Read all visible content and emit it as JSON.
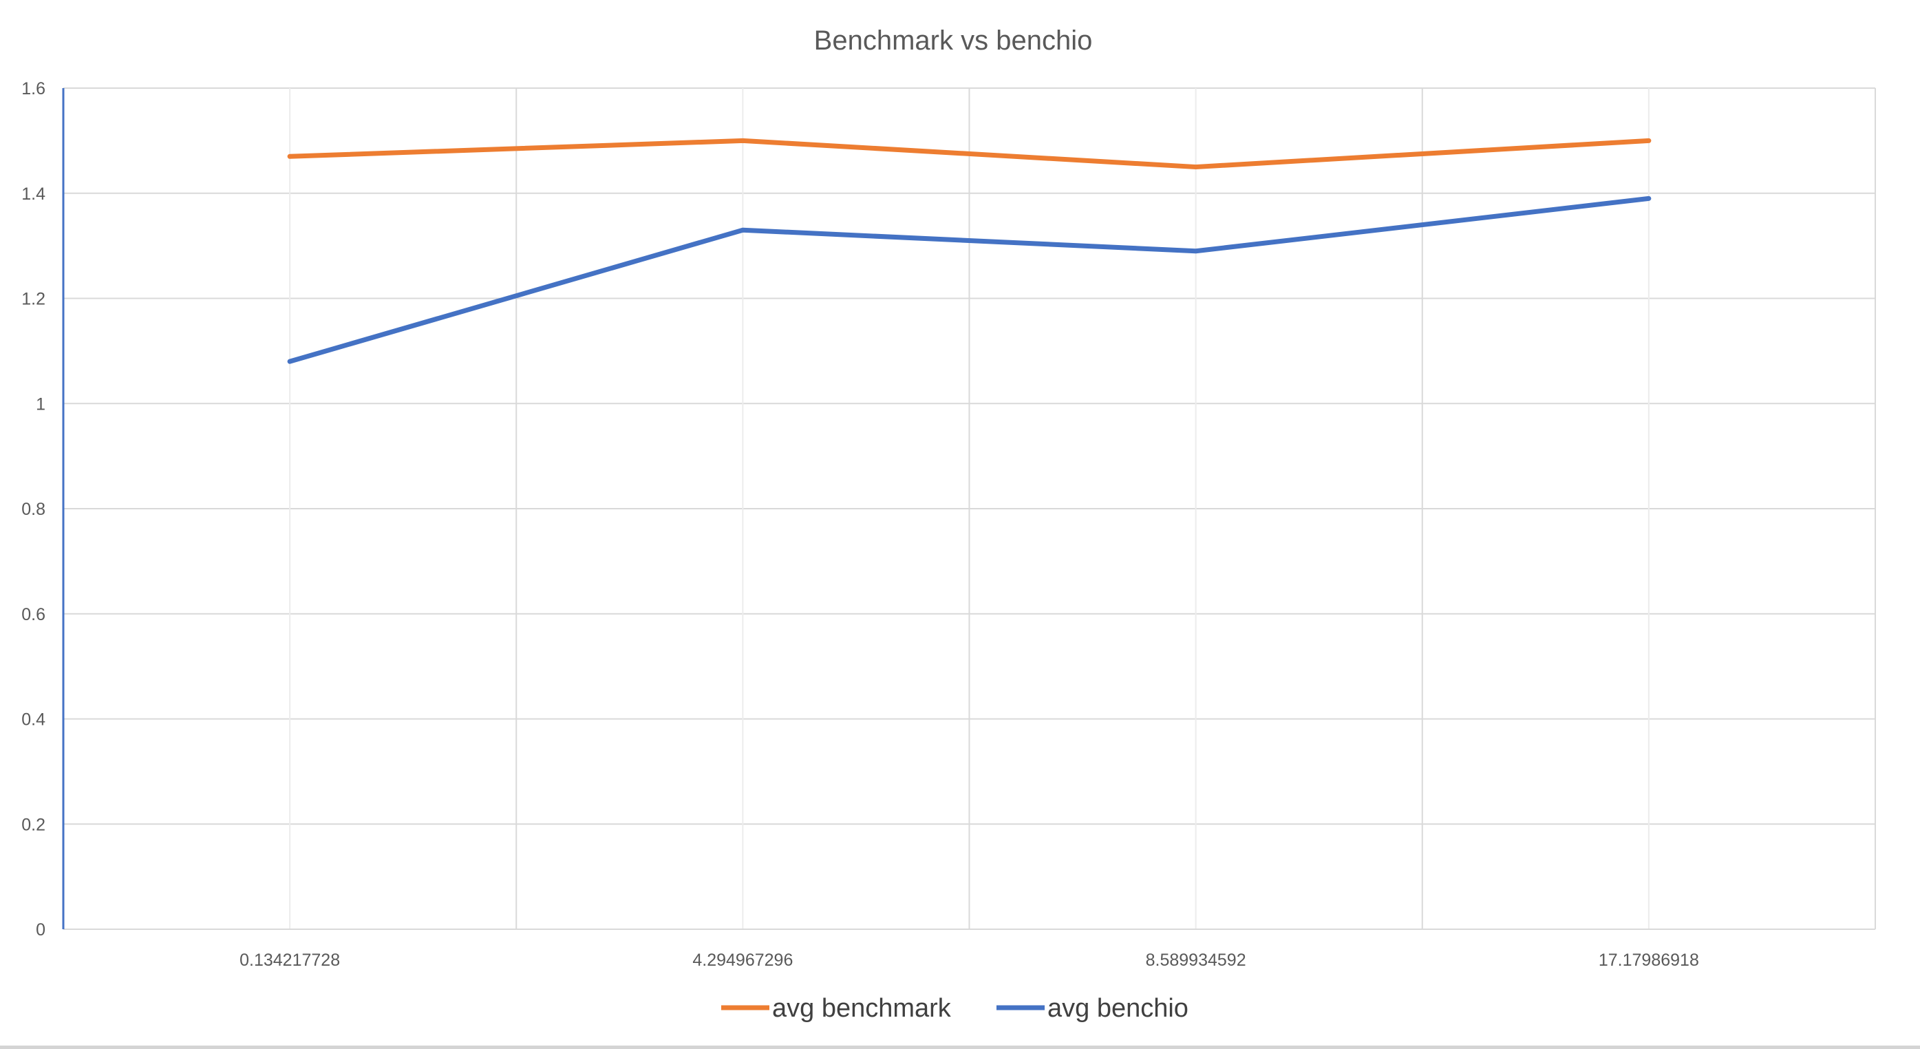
{
  "chart_data": {
    "type": "line",
    "title": "Benchmark vs benchio",
    "categories": [
      "0.134217728",
      "4.294967296",
      "8.589934592",
      "17.17986918"
    ],
    "series": [
      {
        "name": "avg benchmark",
        "color": "#ED7D31",
        "values": [
          1.47,
          1.5,
          1.45,
          1.5
        ]
      },
      {
        "name": "avg benchio",
        "color": "#4472C4",
        "values": [
          1.08,
          1.33,
          1.29,
          1.39
        ]
      }
    ],
    "ylim": [
      0,
      1.6
    ],
    "yticks": [
      "0",
      "0.2",
      "0.4",
      "0.6",
      "0.8",
      "1",
      "1.2",
      "1.4",
      "1.6"
    ],
    "grid": true,
    "legend_position": "bottom",
    "xlabel": "",
    "ylabel": ""
  }
}
